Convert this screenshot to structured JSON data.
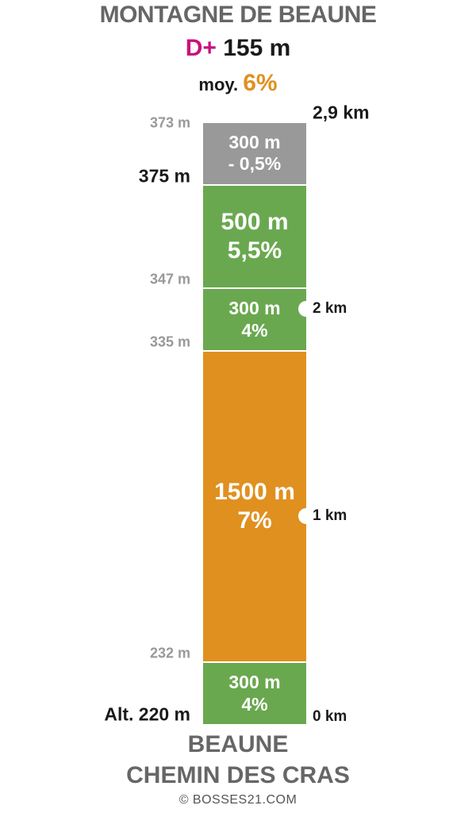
{
  "title": "MONTAGNE DE BEAUNE",
  "summary": {
    "dplus_label": "D+",
    "dplus_value": "155 m",
    "moy_label": "moy.",
    "moy_value": "6%"
  },
  "footer": {
    "place_line1": "BEAUNE",
    "place_line2": "CHEMIN DES CRAS",
    "copyright": "© BOSSES21.COM"
  },
  "colors": {
    "dplus": "#c8117e",
    "average": "#e0901f",
    "grade_negative": "#999999",
    "grade_medium": "#6aa84f",
    "grade_steep": "#e0901f"
  },
  "chart_data": {
    "type": "bar",
    "orientation": "vertical-stack",
    "total_length_km": 2.9,
    "segments": [
      {
        "length_m": 300,
        "grade_pct": 4,
        "length_label": "300 m",
        "grade_label": "4%",
        "color": "#6aa84f"
      },
      {
        "length_m": 1500,
        "grade_pct": 7,
        "length_label": "1500 m",
        "grade_label": "7%",
        "color": "#e0901f"
      },
      {
        "length_m": 300,
        "grade_pct": 4,
        "length_label": "300 m",
        "grade_label": "4%",
        "color": "#6aa84f"
      },
      {
        "length_m": 500,
        "grade_pct": 5.5,
        "length_label": "500 m",
        "grade_label": "5,5%",
        "color": "#6aa84f"
      },
      {
        "length_m": 300,
        "grade_pct": -0.5,
        "length_label": "300 m",
        "grade_label": "- 0,5%",
        "color": "#999999"
      }
    ],
    "altitude_labels": [
      {
        "distance_m": 0,
        "text": "Alt. 220 m",
        "style": "major"
      },
      {
        "distance_m": 300,
        "text": "232 m",
        "style": "minor"
      },
      {
        "distance_m": 1800,
        "text": "335 m",
        "style": "minor"
      },
      {
        "distance_m": 2100,
        "text": "347 m",
        "style": "minor"
      },
      {
        "distance_m": 2600,
        "text": "375 m",
        "style": "major"
      },
      {
        "distance_m": 2900,
        "text": "373 m",
        "style": "minor"
      }
    ],
    "distance_markers": [
      {
        "distance_m": 0,
        "text": "0 km",
        "style": "small",
        "notch": false
      },
      {
        "distance_m": 1000,
        "text": "1 km",
        "style": "small",
        "notch": true
      },
      {
        "distance_m": 2000,
        "text": "2 km",
        "style": "small",
        "notch": true
      },
      {
        "distance_m": 2900,
        "text": "2,9 km",
        "style": "big",
        "notch": false
      }
    ]
  }
}
